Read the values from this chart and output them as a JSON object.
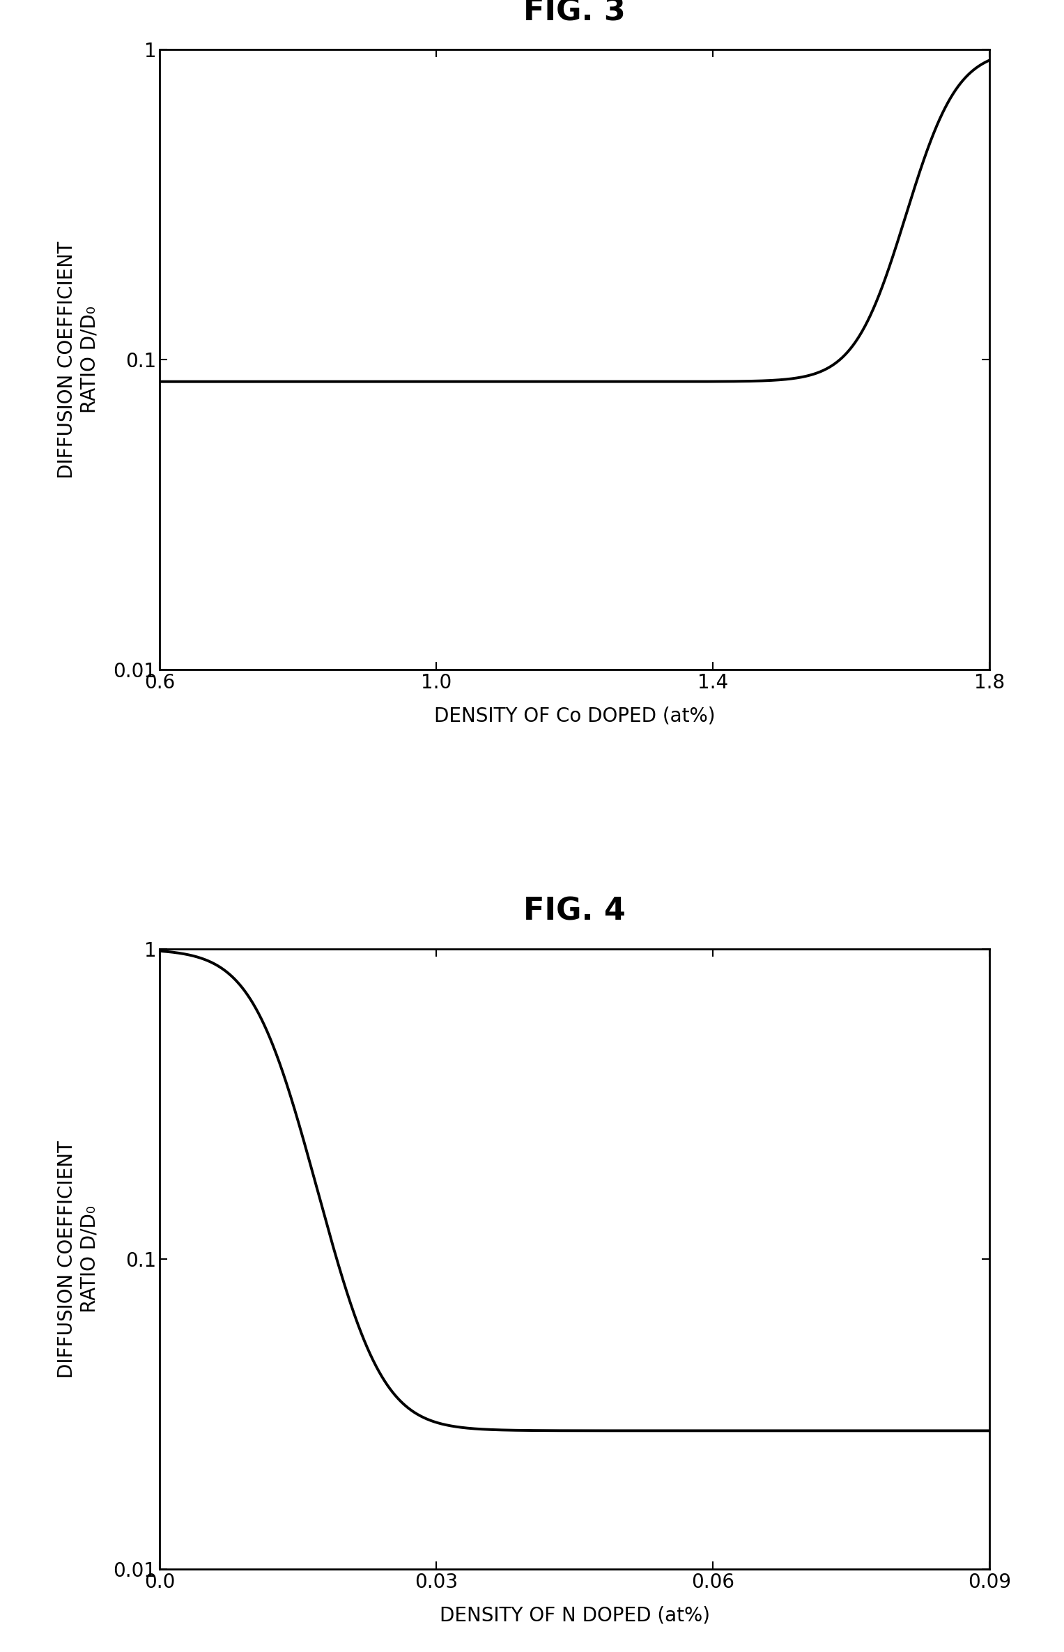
{
  "fig3_title": "FIG. 3",
  "fig4_title": "FIG. 4",
  "fig3_xlabel": "DENSITY OF Co DOPED (at%)",
  "fig4_xlabel": "DENSITY OF N DOPED (at%)",
  "fig3_ylabel_line1": "DIFFUSION COEFFICIENT",
  "fig3_ylabel_line2": "RATIO D/D₀",
  "fig4_ylabel_line1": "DIFFUSION COEFFICIENT",
  "fig4_ylabel_line2": "RATIO D/D₀",
  "fig3_xlim": [
    0.6,
    1.8
  ],
  "fig3_ylim": [
    0.01,
    1.0
  ],
  "fig4_xlim": [
    0.0,
    0.09
  ],
  "fig4_ylim": [
    0.01,
    1.0
  ],
  "fig3_xticks": [
    0.6,
    1.0,
    1.4,
    1.8
  ],
  "fig4_xticks": [
    0.0,
    0.03,
    0.06,
    0.09
  ],
  "fig3_yticks": [
    0.01,
    0.1,
    1
  ],
  "fig4_yticks": [
    0.01,
    0.1,
    1
  ],
  "fig3_ytick_labels": [
    "0.01",
    "0.1",
    "1"
  ],
  "fig4_ytick_labels": [
    "0.01",
    "0.1",
    "1"
  ],
  "line_color": "#000000",
  "line_width": 2.8,
  "background_color": "#ffffff",
  "fig3_flat_value": 0.085,
  "fig3_inflection": 1.72,
  "fig3_steepness": 30.0,
  "fig4_flat_value": 0.028,
  "fig4_inflection": 0.012,
  "fig4_steepness": 350.0,
  "title_fontsize": 32,
  "label_fontsize": 20,
  "tick_fontsize": 20,
  "spine_linewidth": 2.0
}
